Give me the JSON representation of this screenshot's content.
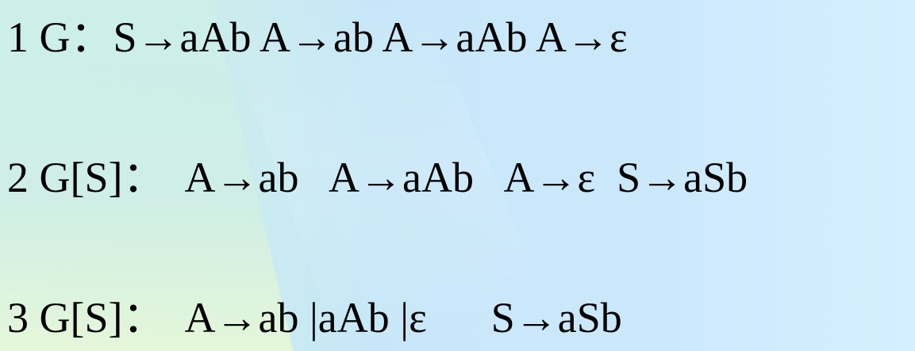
{
  "background": {
    "accent": "#cbe8fb",
    "left_tint": "#ccefea",
    "bottom_left_tint": "#e5f7d8"
  },
  "lines": [
    "1 G：S→aAb A→ab A→aAb A→ε",
    "2 G[S]：  A→ab   A→aAb   A→ε  S→aSb",
    "3 G[S]：  A→ab |aAb |ε      S→aSb"
  ]
}
